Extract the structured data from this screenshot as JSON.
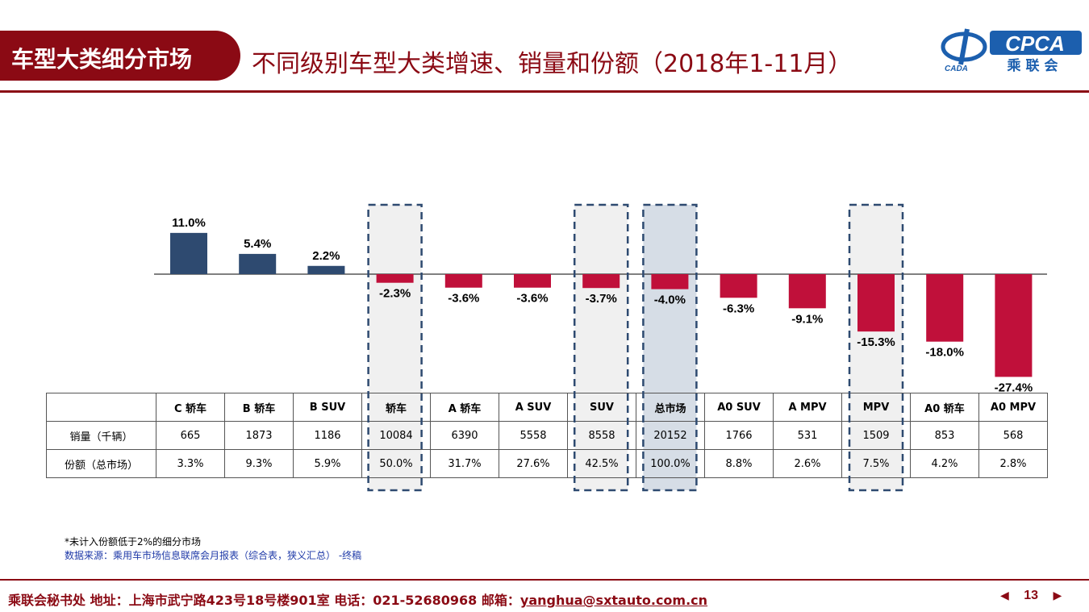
{
  "header": {
    "section_title": "车型大类细分市场",
    "slide_title": "不同级别车型大类增速、销量和份额（2018年1-11月）"
  },
  "logo": {
    "brand_text": "CPCA",
    "cn_text": "乘联会",
    "left_mark": "CADA"
  },
  "colors": {
    "positive_bar": "#2e4a70",
    "negative_bar": "#c0103a",
    "brand": "#8b0a14",
    "highlight_box": "#f0f0f0",
    "total_box": "#d6dde6"
  },
  "chart_data": {
    "type": "bar",
    "categories": [
      "C轿车",
      "B轿车",
      "B SUV",
      "轿车",
      "A轿车",
      "A SUV",
      "SUV",
      "总市场",
      "A0 SUV",
      "A MPV",
      "MPV",
      "A0轿车",
      "A0 MPV"
    ],
    "values": [
      11.0,
      5.4,
      2.2,
      -2.3,
      -3.6,
      -3.6,
      -3.7,
      -4.0,
      -6.3,
      -9.1,
      -15.3,
      -18.0,
      -27.4
    ],
    "value_labels": [
      "11.0%",
      "5.4%",
      "2.2%",
      "-2.3%",
      "-3.6%",
      "-3.6%",
      "-3.7%",
      "-4.0%",
      "-6.3%",
      "-9.1%",
      "-15.3%",
      "-18.0%",
      "-27.4%"
    ],
    "highlighted": [
      "轿车",
      "SUV",
      "总市场",
      "MPV"
    ],
    "grid": false
  },
  "table": {
    "headers": [
      "C 轿车",
      "B 轿车",
      "B SUV",
      "轿车",
      "A 轿车",
      "A SUV",
      "SUV",
      "总市场",
      "A0 SUV",
      "A MPV",
      "MPV",
      "A0 轿车",
      "A0 MPV"
    ],
    "rows": [
      {
        "label": "销量（千辆）",
        "cells": [
          "665",
          "1873",
          "1186",
          "10084",
          "6390",
          "5558",
          "8558",
          "20152",
          "1766",
          "531",
          "1509",
          "853",
          "568"
        ]
      },
      {
        "label": "份额（总市场）",
        "cells": [
          "3.3%",
          "9.3%",
          "5.9%",
          "50.0%",
          "31.7%",
          "27.6%",
          "42.5%",
          "100.0%",
          "8.8%",
          "2.6%",
          "7.5%",
          "4.2%",
          "2.8%"
        ]
      }
    ]
  },
  "notes": {
    "note1": "*未计入份额低于2%的细分市场",
    "note2": "数据来源：乘用车市场信息联席会月报表（综合表，狭义汇总） -终稿"
  },
  "footer": {
    "prefix": "乘联会秘书处 地址：上海市武宁路423号18号楼901室 电话：021-52680968 邮箱：",
    "email": "yanghua@sxtauto.com.cn",
    "page": "13",
    "prev_icon": "triangle-left-icon",
    "next_icon": "triangle-right-icon"
  }
}
